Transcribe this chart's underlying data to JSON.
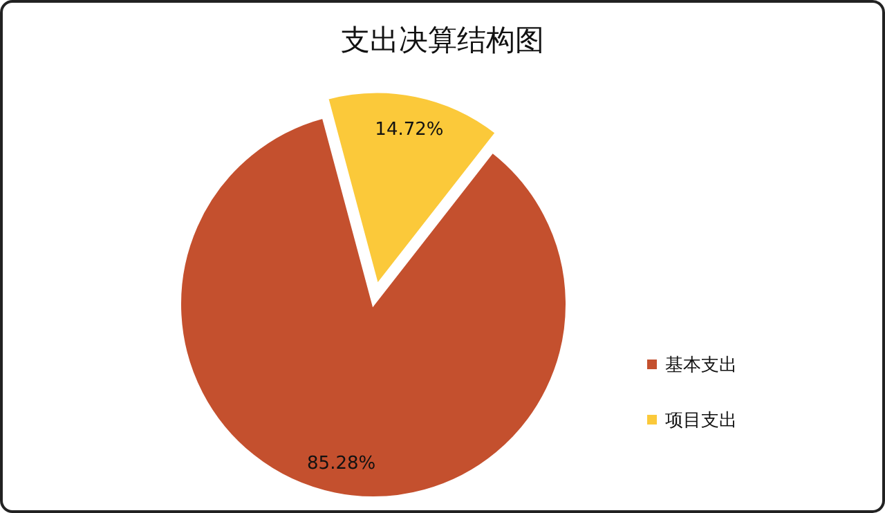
{
  "chart_data": {
    "type": "pie",
    "title": "支出决算结构图",
    "categories": [
      "基本支出",
      "项目支出"
    ],
    "values": [
      85.28,
      14.72
    ],
    "colors": [
      "#c4502e",
      "#fbc93a"
    ],
    "value_labels": [
      "85.28%",
      "14.72%"
    ],
    "legend": "right"
  }
}
